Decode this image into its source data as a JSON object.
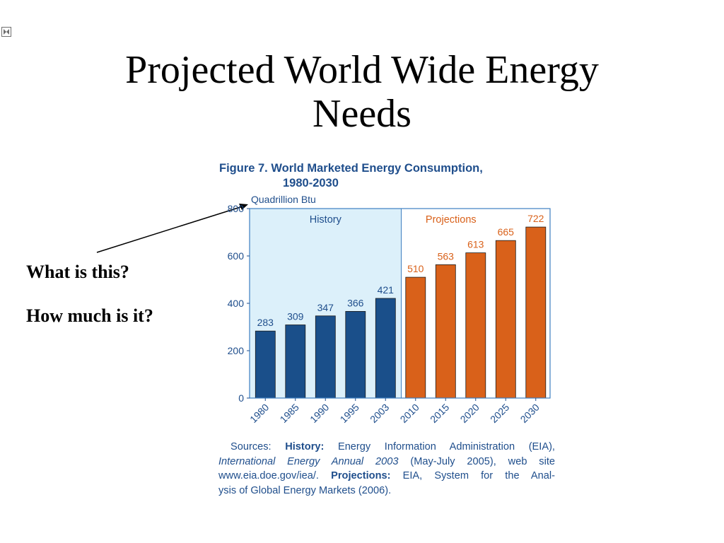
{
  "slide": {
    "title_lines": [
      "Projected World Wide Energy",
      "Needs"
    ],
    "questions": [
      "What is this?",
      "How much is it?"
    ],
    "icon": "broken-image-icon"
  },
  "figure": {
    "title_line1": "Figure 7.  World Marketed Energy Consumption,",
    "title_line2": "1980-2030",
    "sources": {
      "line1_prefix": "Sources: ",
      "line1_bold": "History:",
      "line1_rest": " Energy Information Administration (EIA),",
      "line2_italic": "International Energy Annual 2003",
      "line2_rest": " (May-July 2005), web site",
      "line3_prefix": "www.eia.doe.gov/iea/. ",
      "line3_bold": "Projections:",
      "line3_rest": " EIA, System for the Anal-",
      "line4": "ysis of Global Energy Markets (2006)."
    }
  },
  "chart_data": {
    "type": "bar",
    "ylabel": "Quadrillion Btu",
    "ylim": [
      0,
      800
    ],
    "yticks": [
      0,
      200,
      400,
      600,
      800
    ],
    "categories": [
      "1980",
      "1985",
      "1990",
      "1995",
      "2003",
      "2010",
      "2015",
      "2020",
      "2025",
      "2030"
    ],
    "values": [
      283,
      309,
      347,
      366,
      421,
      510,
      563,
      613,
      665,
      722
    ],
    "regions": [
      {
        "label": "History",
        "categories": [
          "1980",
          "1985",
          "1990",
          "1995",
          "2003"
        ]
      },
      {
        "label": "Projections",
        "categories": [
          "2010",
          "2015",
          "2020",
          "2025",
          "2030"
        ]
      }
    ],
    "colors": {
      "history_bar": "#1a4f8a",
      "projection_bar": "#d9611a",
      "history_bg": "#dcf0fa",
      "projection_bg": "#ffffff",
      "axis_text": "#1f4e8c",
      "projection_text": "#d9611a",
      "frame": "#3d7fc1"
    },
    "data_labels": true,
    "grid": false
  }
}
